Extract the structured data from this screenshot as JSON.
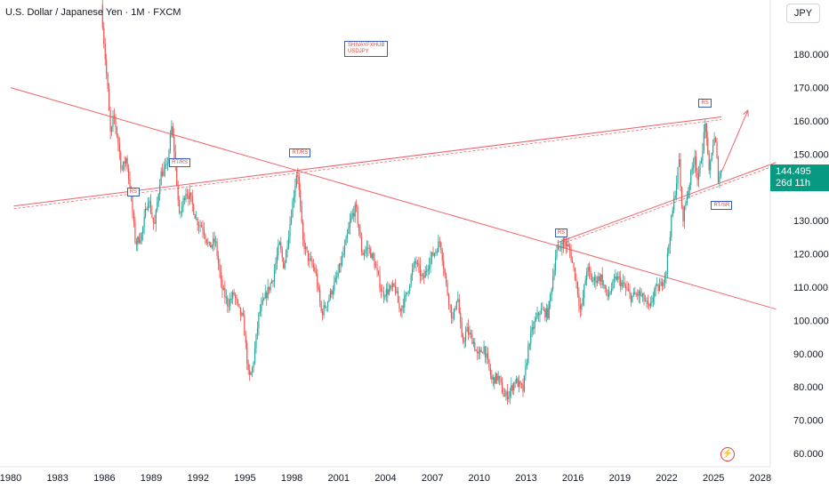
{
  "header": {
    "title": "U.S. Dollar / Japanese Yen · 1M · FXCM"
  },
  "currency_button": {
    "label": "JPY"
  },
  "watermark": {
    "line1": "SHIVAYFXHUB",
    "line2": "USDJPY"
  },
  "price_tag": {
    "price": "144.495",
    "countdown": "26d 11h"
  },
  "flash_icon": {
    "glyph": "⚡"
  },
  "annotations": [
    {
      "text": "RS",
      "x": 1987.9,
      "y": 138.6
    },
    {
      "text": "RT/RS",
      "x": 1990.6,
      "y": 147.5
    },
    {
      "text": "RT/RS",
      "x": 1998.3,
      "y": 150.3
    },
    {
      "text": "RS",
      "x": 2015.3,
      "y": 126.2
    },
    {
      "text": "RS",
      "x": 2024.5,
      "y": 165.3
    },
    {
      "text": "RT/SR",
      "x": 2025.3,
      "y": 134.7
    }
  ],
  "colors": {
    "up": "#26a69a",
    "down": "#ef5350",
    "trendline": "#f0636a",
    "price_tag": "#089981",
    "axis_text": "#131722"
  },
  "chart_data": {
    "type": "candlestick",
    "title": "U.S. Dollar / Japanese Yen · 1M · FXCM",
    "xlim": [
      1980,
      2029
    ],
    "ylim": [
      57.0,
      190.0
    ],
    "x_ticks": [
      "1980",
      "1983",
      "1986",
      "1989",
      "1992",
      "1995",
      "1998",
      "2001",
      "2004",
      "2007",
      "2010",
      "2013",
      "2016",
      "2019",
      "2022",
      "2025",
      "2028"
    ],
    "y_ticks": [
      "60.000",
      "70.000",
      "80.000",
      "90.000",
      "100.000",
      "110.000",
      "120.000",
      "130.000",
      "140.000",
      "150.000",
      "160.000",
      "170.000",
      "180.000"
    ],
    "last_price": 144.495,
    "price_path": [
      [
        1985.8,
        195
      ],
      [
        1985.95,
        185
      ],
      [
        1986.2,
        170
      ],
      [
        1986.4,
        155
      ],
      [
        1986.6,
        162
      ],
      [
        1986.9,
        153
      ],
      [
        1987.1,
        145
      ],
      [
        1987.4,
        149
      ],
      [
        1987.7,
        137
      ],
      [
        1988.0,
        123
      ],
      [
        1988.4,
        126
      ],
      [
        1988.8,
        137
      ],
      [
        1989.2,
        128
      ],
      [
        1989.6,
        144
      ],
      [
        1990.0,
        146
      ],
      [
        1990.3,
        158
      ],
      [
        1990.5,
        150
      ],
      [
        1990.8,
        131
      ],
      [
        1991.2,
        139
      ],
      [
        1991.5,
        137
      ],
      [
        1991.9,
        130
      ],
      [
        1992.3,
        128
      ],
      [
        1992.7,
        122
      ],
      [
        1993.1,
        124
      ],
      [
        1993.5,
        110
      ],
      [
        1993.9,
        105
      ],
      [
        1994.3,
        108
      ],
      [
        1994.6,
        103
      ],
      [
        1994.9,
        100
      ],
      [
        1995.25,
        82
      ],
      [
        1995.5,
        86
      ],
      [
        1995.9,
        102
      ],
      [
        1996.3,
        107
      ],
      [
        1996.8,
        113
      ],
      [
        1997.2,
        123
      ],
      [
        1997.5,
        116
      ],
      [
        1997.9,
        130
      ],
      [
        1998.35,
        146
      ],
      [
        1998.7,
        124
      ],
      [
        1999.1,
        118
      ],
      [
        1999.5,
        115
      ],
      [
        1999.9,
        102
      ],
      [
        2000.3,
        106
      ],
      [
        2000.9,
        113
      ],
      [
        2001.4,
        122
      ],
      [
        2001.8,
        131
      ],
      [
        2002.1,
        134
      ],
      [
        2002.5,
        120
      ],
      [
        2002.9,
        122
      ],
      [
        2003.3,
        117
      ],
      [
        2003.8,
        108
      ],
      [
        2004.2,
        109
      ],
      [
        2004.6,
        110
      ],
      [
        2004.9,
        103
      ],
      [
        2005.3,
        107
      ],
      [
        2005.9,
        118
      ],
      [
        2006.4,
        112
      ],
      [
        2006.8,
        118
      ],
      [
        2007.2,
        121
      ],
      [
        2007.5,
        124
      ],
      [
        2007.9,
        110
      ],
      [
        2008.3,
        100
      ],
      [
        2008.6,
        108
      ],
      [
        2008.9,
        93
      ],
      [
        2009.2,
        97
      ],
      [
        2009.6,
        94
      ],
      [
        2009.9,
        89
      ],
      [
        2010.3,
        92
      ],
      [
        2010.8,
        82
      ],
      [
        2011.2,
        83
      ],
      [
        2011.6,
        77
      ],
      [
        2011.9,
        78
      ],
      [
        2012.3,
        82
      ],
      [
        2012.8,
        79
      ],
      [
        2013.2,
        94
      ],
      [
        2013.6,
        100
      ],
      [
        2013.9,
        103
      ],
      [
        2014.4,
        102
      ],
      [
        2014.9,
        120
      ],
      [
        2015.4,
        124
      ],
      [
        2015.8,
        121
      ],
      [
        2016.2,
        112
      ],
      [
        2016.5,
        102
      ],
      [
        2016.9,
        116
      ],
      [
        2017.2,
        112
      ],
      [
        2017.8,
        113
      ],
      [
        2018.2,
        107
      ],
      [
        2018.8,
        113
      ],
      [
        2019.3,
        110
      ],
      [
        2019.7,
        107
      ],
      [
        2020.2,
        108
      ],
      [
        2020.6,
        106
      ],
      [
        2020.9,
        103
      ],
      [
        2021.2,
        109
      ],
      [
        2021.6,
        110
      ],
      [
        2021.95,
        115
      ],
      [
        2022.3,
        130
      ],
      [
        2022.8,
        148
      ],
      [
        2023.0,
        130
      ],
      [
        2023.4,
        140
      ],
      [
        2023.8,
        150
      ],
      [
        2024.0,
        141
      ],
      [
        2024.5,
        160
      ],
      [
        2024.7,
        143
      ],
      [
        2024.9,
        152
      ],
      [
        2025.1,
        155
      ],
      [
        2025.3,
        143
      ],
      [
        2025.5,
        144.5
      ]
    ],
    "trendlines": [
      {
        "name": "",
        "x": [
          1980,
          2029
        ],
        "y": [
          170.0,
          103.4
        ]
      },
      {
        "name": "",
        "x": [
          1980.2,
          2025.5
        ],
        "y": [
          134.4,
          161.2
        ]
      },
      {
        "name": "",
        "x": [
          2015.0,
          2029
        ],
        "y": [
          123.4,
          147.5
        ]
      }
    ],
    "projection_arrow": {
      "from": [
        2025.5,
        144.5
      ],
      "to": [
        2027.2,
        163.2
      ]
    }
  }
}
